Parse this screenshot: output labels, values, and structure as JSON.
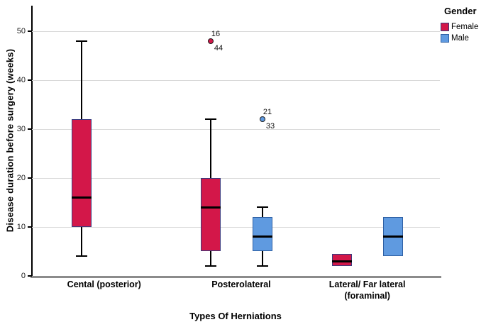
{
  "chart_data": {
    "type": "boxplot",
    "xlabel": "Types Of Herniations",
    "ylabel": "Disease duration before surgery (weeks)",
    "ylim": [
      0,
      55.2
    ],
    "yticks": [
      0,
      10,
      20,
      30,
      40,
      50
    ],
    "grid": "horizontal-only",
    "categories": [
      {
        "label": "Cental (posterior)",
        "x": 0.177
      },
      {
        "label": "Posterolateral",
        "x": 0.513
      },
      {
        "label": "Lateral/ Far lateral\n(foraminal)",
        "x": 0.822
      }
    ],
    "legend": {
      "title": "Gender",
      "position": "top-right",
      "entries": [
        {
          "label": "Female",
          "color": "#d31749",
          "border": "#3a3a7e"
        },
        {
          "label": "Male",
          "color": "#5f9ae0",
          "border": "#2e5fa3"
        }
      ]
    },
    "boxes": [
      {
        "category": "Cental (posterior)",
        "gender": "Female",
        "x": 0.122,
        "whisker_low": 4,
        "q1": 10,
        "median": 16,
        "q3": 32,
        "whisker_high": 48
      },
      {
        "category": "Posterolateral",
        "gender": "Female",
        "x": 0.438,
        "whisker_low": 2,
        "q1": 5,
        "median": 14,
        "q3": 20,
        "whisker_high": 32
      },
      {
        "category": "Posterolateral",
        "gender": "Male",
        "x": 0.565,
        "whisker_low": 2,
        "q1": 5,
        "median": 8,
        "q3": 12,
        "whisker_high": 14
      },
      {
        "category": "Lateral/ Far lateral (foraminal)",
        "gender": "Female",
        "x": 0.76,
        "q1": 2,
        "median": 3,
        "q3": 4.5
      },
      {
        "category": "Lateral/ Far lateral (foraminal)",
        "gender": "Male",
        "x": 0.885,
        "q1": 4,
        "median": 8,
        "q3": 12
      }
    ],
    "outliers": [
      {
        "category": "Posterolateral",
        "gender": "Female",
        "value": 48,
        "case_label_above": "16",
        "case_label_below": "44",
        "x": 0.438
      },
      {
        "category": "Posterolateral",
        "gender": "Male",
        "value": 32,
        "case_label_above": "21",
        "case_label_below": "33",
        "x": 0.565
      }
    ]
  }
}
